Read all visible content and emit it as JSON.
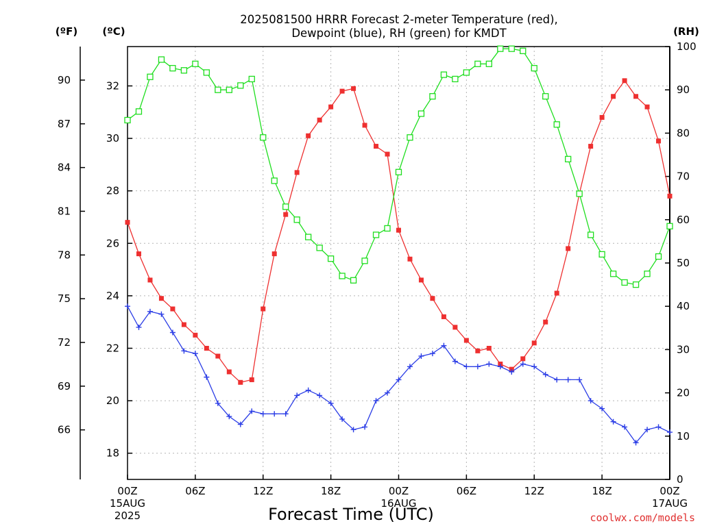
{
  "title_line1": "2025081500 HRRR Forecast 2-meter Temperature (red),",
  "title_line2": "Dewpoint (blue), RH (green) for KMDT",
  "unit_f": "(ºF)",
  "unit_c": "(ºC)",
  "unit_rh": "(RH)",
  "x_axis_label": "Forecast Time (UTC)",
  "credit": "coolwx.com/models",
  "colors": {
    "temperature": "#ee3030",
    "dewpoint": "#2b3de6",
    "rh": "#1ede1e",
    "credit": "#e03030"
  },
  "chart_data": {
    "type": "line",
    "x_range_hours": [
      0,
      48
    ],
    "x_ticks": [
      {
        "h": 0,
        "lines": [
          "00Z",
          "15AUG",
          "2025"
        ]
      },
      {
        "h": 6,
        "lines": [
          "06Z"
        ]
      },
      {
        "h": 12,
        "lines": [
          "12Z"
        ]
      },
      {
        "h": 18,
        "lines": [
          "18Z"
        ]
      },
      {
        "h": 24,
        "lines": [
          "00Z",
          "16AUG"
        ]
      },
      {
        "h": 30,
        "lines": [
          "06Z"
        ]
      },
      {
        "h": 36,
        "lines": [
          "12Z"
        ]
      },
      {
        "h": 42,
        "lines": [
          "18Z"
        ]
      },
      {
        "h": 48,
        "lines": [
          "00Z",
          "17AUG"
        ]
      }
    ],
    "ylim_c": [
      17.0,
      33.5
    ],
    "y_ticks_c": [
      18,
      20,
      22,
      24,
      26,
      28,
      30,
      32
    ],
    "y_ticks_f": [
      66,
      69,
      72,
      75,
      78,
      81,
      84,
      87,
      90
    ],
    "ylim_rh": [
      0,
      100
    ],
    "y_ticks_rh": [
      0,
      10,
      20,
      30,
      40,
      50,
      60,
      70,
      80,
      90,
      100
    ],
    "series": [
      {
        "name": "Temperature",
        "color": "#ee3030",
        "axis": "c",
        "marker": "filled-square",
        "values": [
          26.8,
          25.6,
          24.6,
          23.9,
          23.5,
          22.9,
          22.5,
          22.0,
          21.7,
          21.1,
          20.7,
          20.8,
          23.5,
          25.6,
          27.1,
          28.7,
          30.1,
          30.7,
          31.2,
          31.8,
          31.9,
          30.5,
          29.7,
          29.4,
          26.5,
          25.4,
          24.6,
          23.9,
          23.2,
          22.8,
          22.3,
          21.9,
          22.0,
          21.4,
          21.2,
          21.6,
          22.2,
          23.0,
          24.1,
          25.8,
          27.9,
          29.7,
          30.8,
          31.6,
          32.2,
          31.6,
          31.2,
          29.9,
          27.8
        ]
      },
      {
        "name": "Dewpoint",
        "color": "#2b3de6",
        "axis": "c",
        "marker": "plus",
        "values": [
          23.6,
          22.8,
          23.4,
          23.3,
          22.6,
          21.9,
          21.8,
          20.9,
          19.9,
          19.4,
          19.1,
          19.6,
          19.5,
          19.5,
          19.5,
          20.2,
          20.4,
          20.2,
          19.9,
          19.3,
          18.9,
          19.0,
          20.0,
          20.3,
          20.8,
          21.3,
          21.7,
          21.8,
          22.1,
          21.5,
          21.3,
          21.3,
          21.4,
          21.3,
          21.1,
          21.4,
          21.3,
          21.0,
          20.8,
          20.8,
          20.8,
          20.0,
          19.7,
          19.2,
          19.0,
          18.4,
          18.9,
          19.0,
          18.8
        ]
      },
      {
        "name": "RH",
        "color": "#1ede1e",
        "axis": "rh",
        "marker": "open-square",
        "values": [
          83,
          85,
          93,
          97,
          95,
          94.5,
          96,
          94,
          90,
          90,
          91,
          92.5,
          79,
          69,
          63,
          60,
          56,
          53.5,
          51,
          47,
          46,
          50.5,
          56.5,
          58,
          71,
          79,
          84.5,
          88.5,
          93.5,
          92.5,
          94,
          96,
          96,
          99.5,
          99.5,
          99,
          95,
          88.5,
          82,
          74,
          66,
          56.5,
          52,
          47.5,
          45.5,
          45,
          47.5,
          51.5,
          58.5
        ]
      }
    ]
  }
}
